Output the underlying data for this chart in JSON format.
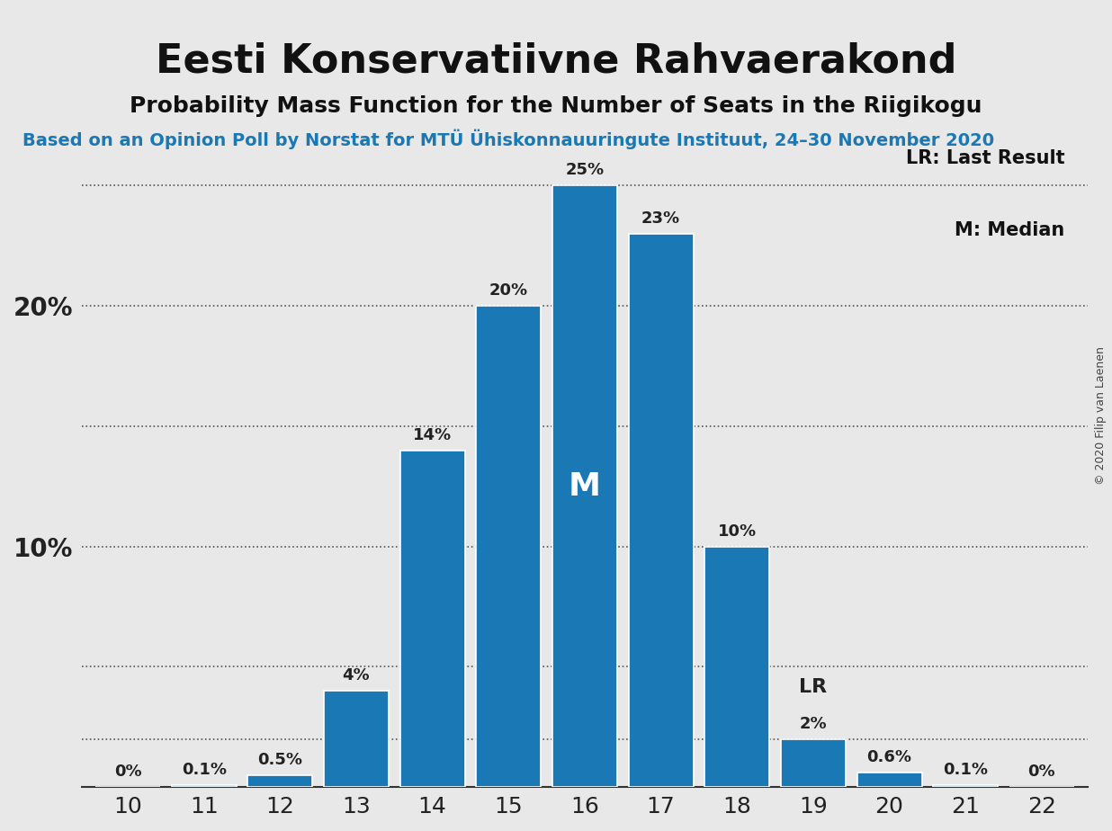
{
  "title": "Eesti Konservatiivne Rahvaerakond",
  "subtitle": "Probability Mass Function for the Number of Seats in the Riigikogu",
  "source_line": "Based on an Opinion Poll by Norstat for MTÜ Ühiskonnauuringute Instituut, 24–30 November 2020",
  "copyright": "© 2020 Filip van Laenen",
  "categories": [
    10,
    11,
    12,
    13,
    14,
    15,
    16,
    17,
    18,
    19,
    20,
    21,
    22
  ],
  "values": [
    0.0,
    0.1,
    0.5,
    4.0,
    14.0,
    20.0,
    25.0,
    23.0,
    10.0,
    2.0,
    0.6,
    0.1,
    0.0
  ],
  "labels": [
    "0%",
    "0.1%",
    "0.5%",
    "4%",
    "14%",
    "20%",
    "25%",
    "23%",
    "10%",
    "2%",
    "0.6%",
    "0.1%",
    "0%"
  ],
  "bar_color": "#1a78b4",
  "background_color": "#e8e8e8",
  "plot_bg_color": "#e8e8e8",
  "median_seat": 16,
  "last_result_seat": 19,
  "yticks": [
    0,
    5,
    10,
    15,
    20,
    25
  ],
  "ylim": [
    0,
    28
  ],
  "grid_color": "#555555",
  "legend_LR": "LR: Last Result",
  "legend_M": "M: Median",
  "title_fontsize": 32,
  "subtitle_fontsize": 18,
  "source_fontsize": 14
}
